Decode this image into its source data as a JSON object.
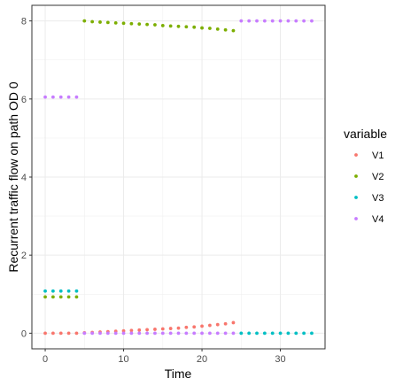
{
  "chart_data": {
    "type": "scatter",
    "title": "",
    "xlabel": "Time",
    "ylabel": "Recurrent traffic flow on path OD 0",
    "xlim": [
      -1.7,
      35.7
    ],
    "ylim": [
      -0.4,
      8.4
    ],
    "x_ticks": [
      0,
      10,
      20,
      30
    ],
    "y_ticks": [
      0,
      2,
      4,
      6,
      8
    ],
    "grid": true,
    "legend": {
      "title": "variable",
      "position": "right"
    },
    "series": [
      {
        "name": "V1",
        "color": "#F8766D",
        "points": [
          [
            0,
            0
          ],
          [
            1,
            0
          ],
          [
            2,
            0
          ],
          [
            3,
            0
          ],
          [
            4,
            0
          ],
          [
            5,
            0.01
          ],
          [
            6,
            0.02
          ],
          [
            7,
            0.03
          ],
          [
            8,
            0.04
          ],
          [
            9,
            0.05
          ],
          [
            10,
            0.06
          ],
          [
            11,
            0.07
          ],
          [
            12,
            0.08
          ],
          [
            13,
            0.09
          ],
          [
            14,
            0.1
          ],
          [
            15,
            0.11
          ],
          [
            16,
            0.12
          ],
          [
            17,
            0.13
          ],
          [
            18,
            0.15
          ],
          [
            19,
            0.16
          ],
          [
            20,
            0.18
          ],
          [
            21,
            0.2
          ],
          [
            22,
            0.22
          ],
          [
            23,
            0.24
          ],
          [
            24,
            0.27
          ]
        ]
      },
      {
        "name": "V2",
        "color": "#7CAE00",
        "points": [
          [
            0,
            0.93
          ],
          [
            1,
            0.93
          ],
          [
            2,
            0.93
          ],
          [
            3,
            0.93
          ],
          [
            4,
            0.93
          ],
          [
            5,
            8.0
          ],
          [
            6,
            7.98
          ],
          [
            7,
            7.97
          ],
          [
            8,
            7.96
          ],
          [
            9,
            7.95
          ],
          [
            10,
            7.94
          ],
          [
            11,
            7.93
          ],
          [
            12,
            7.92
          ],
          [
            13,
            7.91
          ],
          [
            14,
            7.9
          ],
          [
            15,
            7.88
          ],
          [
            16,
            7.87
          ],
          [
            17,
            7.86
          ],
          [
            18,
            7.85
          ],
          [
            19,
            7.84
          ],
          [
            20,
            7.82
          ],
          [
            21,
            7.81
          ],
          [
            22,
            7.79
          ],
          [
            23,
            7.77
          ],
          [
            24,
            7.75
          ]
        ]
      },
      {
        "name": "V3",
        "color": "#00BFC4",
        "points": [
          [
            0,
            1.08
          ],
          [
            1,
            1.08
          ],
          [
            2,
            1.08
          ],
          [
            3,
            1.08
          ],
          [
            4,
            1.08
          ],
          [
            25,
            0
          ],
          [
            26,
            0
          ],
          [
            27,
            0
          ],
          [
            28,
            0
          ],
          [
            29,
            0
          ],
          [
            30,
            0
          ],
          [
            31,
            0
          ],
          [
            32,
            0
          ],
          [
            33,
            0
          ],
          [
            34,
            0
          ]
        ]
      },
      {
        "name": "V4",
        "color": "#C77CFF",
        "points": [
          [
            0,
            6.05
          ],
          [
            1,
            6.05
          ],
          [
            2,
            6.05
          ],
          [
            3,
            6.05
          ],
          [
            4,
            6.05
          ],
          [
            5,
            0
          ],
          [
            6,
            0
          ],
          [
            7,
            0
          ],
          [
            8,
            0
          ],
          [
            9,
            0
          ],
          [
            10,
            0
          ],
          [
            11,
            0
          ],
          [
            12,
            0
          ],
          [
            13,
            0
          ],
          [
            14,
            0
          ],
          [
            15,
            0
          ],
          [
            16,
            0
          ],
          [
            17,
            0
          ],
          [
            18,
            0
          ],
          [
            19,
            0
          ],
          [
            20,
            0
          ],
          [
            21,
            0
          ],
          [
            22,
            0
          ],
          [
            23,
            0
          ],
          [
            24,
            0
          ],
          [
            25,
            8.0
          ],
          [
            26,
            8.0
          ],
          [
            27,
            8.0
          ],
          [
            28,
            8.0
          ],
          [
            29,
            8.0
          ],
          [
            30,
            8.0
          ],
          [
            31,
            8.0
          ],
          [
            32,
            8.0
          ],
          [
            33,
            8.0
          ],
          [
            34,
            8.0
          ]
        ]
      }
    ]
  }
}
